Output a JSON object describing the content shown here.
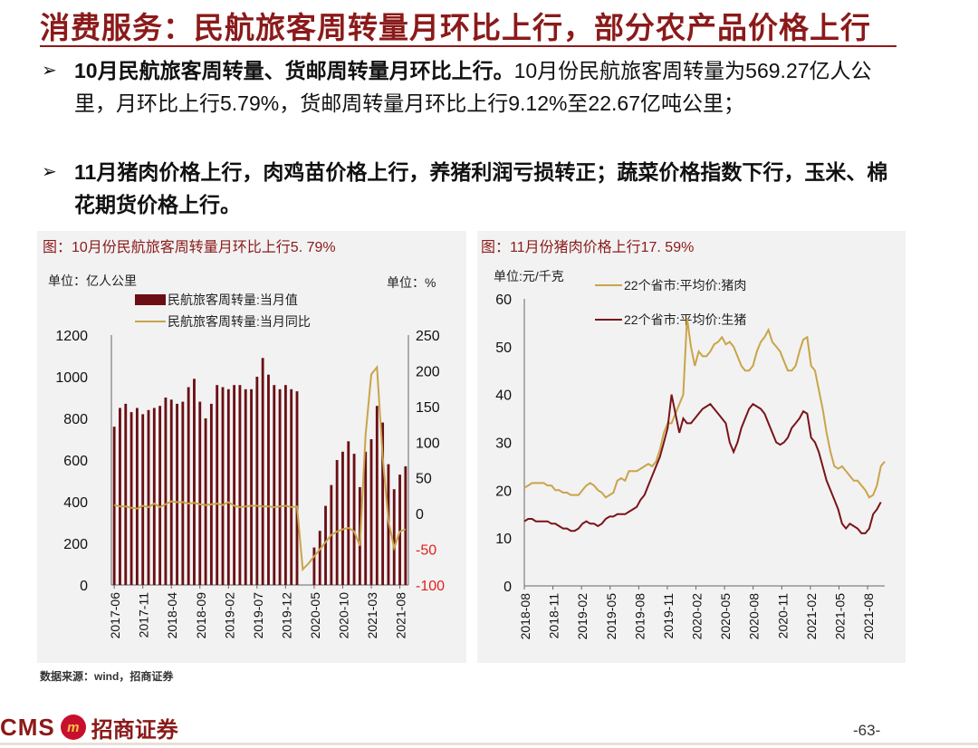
{
  "page": {
    "title": "消费服务：民航旅客周转量月环比上行，部分农产品价格上行",
    "bullets": [
      {
        "bold": "10月民航旅客周转量、货邮周转量月环比上行。",
        "text": "10月份民航旅客周转量为569.27亿人公里，月环比上行5.79%，货邮周转量月环比上行9.12%至22.67亿吨公里；"
      },
      {
        "bold": "11月猪肉价格上行，肉鸡苗价格上行，养猪利润亏损转正；蔬菜价格指数下行，玉米、棉花期货价格上行。",
        "text": ""
      }
    ],
    "bullet_mark": "➢",
    "source": "数据来源：wind，招商证券",
    "footer": {
      "logo_text": "CMS",
      "logo_badge": "m",
      "logo_cn": "招商证券",
      "page_number": "-63-"
    },
    "colors": {
      "brand": "#8b1a1a",
      "bar": "#6b0f14",
      "line_gold": "#c9a44a",
      "line_dark": "#7a1418",
      "neg_label": "#e0201e",
      "panel_bg": "#f2f2f2"
    }
  },
  "chart_data": [
    {
      "type": "bar",
      "title": "图：10月份民航旅客周转量月环比上行5. 79%",
      "left_unit": "单位：亿人公里",
      "right_unit": "单位：%",
      "legend": [
        {
          "name": "民航旅客周转量:当月值",
          "kind": "bar"
        },
        {
          "name": "民航旅客周转量:当月同比",
          "kind": "line"
        }
      ],
      "x_start": "2017-06",
      "x_ticks": [
        "2017-06",
        "2017-11",
        "2018-04",
        "2018-09",
        "2019-02",
        "2019-07",
        "2019-12",
        "2020-05",
        "2020-10",
        "2021-03",
        "2021-08"
      ],
      "y_left_ticks": [
        0,
        200,
        400,
        600,
        800,
        1000,
        1200
      ],
      "y_left_range": [
        0,
        1200
      ],
      "y_right_ticks": [
        -100,
        -50,
        0,
        50,
        100,
        150,
        200,
        250
      ],
      "y_right_range": [
        -100,
        250
      ],
      "series": [
        {
          "name": "民航旅客周转量:当月值",
          "axis": "left",
          "values": [
            760,
            850,
            870,
            830,
            850,
            820,
            840,
            850,
            860,
            900,
            890,
            870,
            880,
            950,
            990,
            880,
            800,
            870,
            960,
            950,
            940,
            960,
            960,
            940,
            940,
            1000,
            1090,
            1010,
            960,
            940,
            960,
            940,
            930,
            0,
            0,
            180,
            260,
            380,
            480,
            600,
            640,
            690,
            630,
            470,
            640,
            700,
            860,
            780,
            580,
            460,
            530,
            570
          ]
        },
        {
          "name": "民航旅客周转量:当月同比",
          "axis": "right",
          "values": [
            12,
            10,
            10,
            8,
            7,
            11,
            9,
            14,
            9,
            13,
            17,
            16,
            16,
            14,
            15,
            13,
            12,
            13,
            14,
            12,
            16,
            11,
            9,
            10,
            11,
            11,
            10,
            10,
            9,
            10,
            11,
            9,
            10,
            -78,
            -70,
            -60,
            -50,
            -40,
            -30,
            -25,
            -22,
            -20,
            -25,
            -45,
            110,
            195,
            205,
            80,
            -10,
            -48,
            -25,
            -22
          ]
        }
      ]
    },
    {
      "type": "line",
      "title": "图：11月份猪肉价格上行17. 59%",
      "unit": "单位:元/千克",
      "legend": [
        {
          "name": "22个省市:平均价:猪肉"
        },
        {
          "name": "22个省市:平均价:生猪"
        }
      ],
      "x_ticks": [
        "2018-08",
        "2018-11",
        "2019-02",
        "2019-05",
        "2019-08",
        "2019-11",
        "2020-02",
        "2020-05",
        "2020-08",
        "2020-11",
        "2021-02",
        "2021-05",
        "2021-08"
      ],
      "y_ticks": [
        0,
        10,
        20,
        30,
        40,
        50,
        60
      ],
      "y_range": [
        0,
        60
      ],
      "series": [
        {
          "name": "22个省市:平均价:猪肉",
          "values": [
            20.5,
            21,
            21.5,
            21.5,
            21.5,
            21.5,
            21,
            21,
            20,
            20,
            19.5,
            19.5,
            19,
            19,
            19,
            20,
            21,
            21.5,
            21,
            20,
            19.5,
            18.5,
            19,
            19.5,
            22,
            22.5,
            22,
            24,
            24,
            24,
            24.5,
            25,
            25.5,
            25,
            26,
            28.5,
            32,
            34,
            34,
            36,
            38,
            40,
            56,
            50,
            46,
            49,
            48,
            48,
            49,
            50.5,
            51,
            52,
            50.5,
            51,
            50,
            48,
            46,
            45,
            45,
            46,
            49,
            51,
            52,
            53.5,
            51,
            50,
            49,
            47,
            45,
            45,
            46,
            49,
            51.5,
            52,
            46,
            45,
            41,
            37,
            32,
            28,
            25,
            24.5,
            25,
            24,
            23,
            22,
            22,
            21,
            20,
            18.5,
            19,
            21,
            25,
            26
          ]
        },
        {
          "name": "22个省市:平均价:生猪",
          "values": [
            13.5,
            14,
            14,
            13.5,
            13.5,
            13.5,
            13.5,
            13,
            13,
            12.5,
            12,
            12,
            11.5,
            11.5,
            12,
            13,
            13.5,
            13,
            13,
            12.5,
            13,
            14,
            14.5,
            14.5,
            15,
            15,
            15,
            15.5,
            16,
            16.5,
            18,
            19,
            21,
            23,
            25,
            27,
            30,
            33,
            40,
            36,
            32,
            35,
            34,
            34,
            35,
            36,
            37,
            37.5,
            38,
            37,
            36,
            35,
            34,
            30,
            28,
            30,
            33,
            35,
            37,
            38,
            37.5,
            37,
            36,
            34,
            32,
            30,
            29.5,
            30,
            31,
            33,
            34,
            35,
            36.5,
            36,
            31,
            30,
            28,
            25,
            22,
            20,
            18,
            16,
            13,
            12,
            13,
            12.5,
            12,
            11,
            11,
            12,
            15,
            16,
            17.5
          ]
        }
      ]
    }
  ]
}
